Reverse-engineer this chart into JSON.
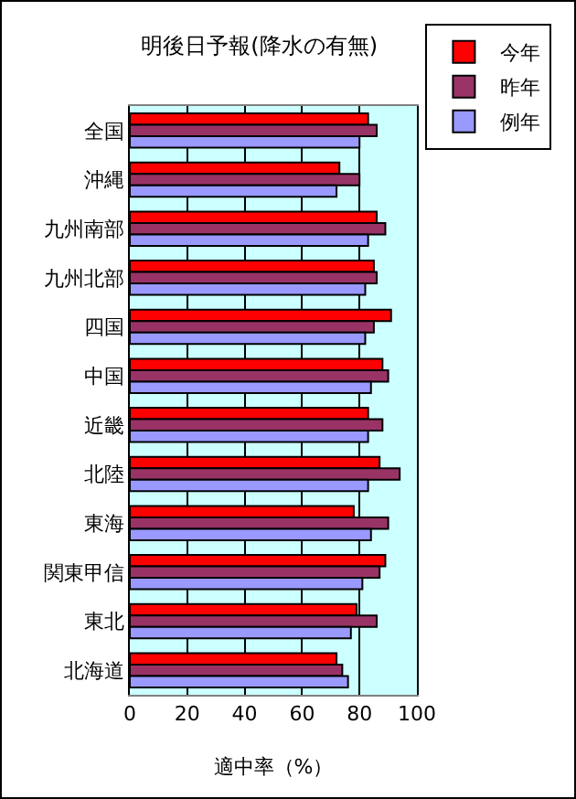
{
  "chart_data": {
    "type": "bar",
    "orientation": "horizontal",
    "title": "明後日予報(降水の有無)",
    "xlabel": "適中率（%）",
    "categories": [
      "全国",
      "沖縄",
      "九州南部",
      "九州北部",
      "四国",
      "中国",
      "近畿",
      "北陸",
      "東海",
      "関東甲信",
      "東北",
      "北海道"
    ],
    "series": [
      {
        "name": "今年",
        "color": "#ff0000",
        "values": [
          83,
          73,
          86,
          85,
          91,
          88,
          83,
          87,
          78,
          89,
          79,
          72
        ]
      },
      {
        "name": "昨年",
        "color": "#993366",
        "values": [
          86,
          80,
          89,
          86,
          85,
          90,
          88,
          94,
          90,
          87,
          86,
          74
        ]
      },
      {
        "name": "例年",
        "color": "#9999ff",
        "values": [
          80,
          72,
          83,
          82,
          82,
          84,
          83,
          83,
          84,
          81,
          77,
          76
        ]
      }
    ],
    "xlim": [
      0,
      100
    ],
    "xticks": [
      0,
      20,
      40,
      60,
      80,
      100
    ],
    "grid": "x",
    "legend": "top right"
  }
}
